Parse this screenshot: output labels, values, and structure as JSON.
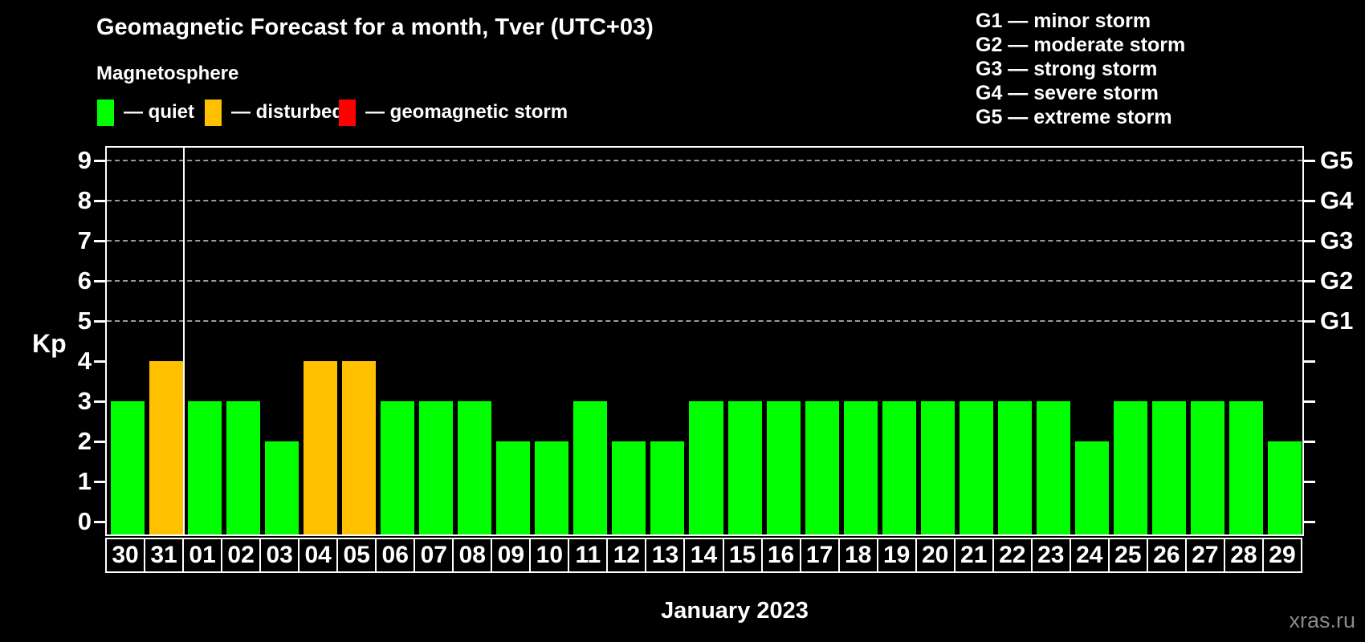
{
  "header": {
    "title": "Geomagnetic Forecast for a month, Tver (UTC+03)",
    "subtitle": "Magnetosphere"
  },
  "legend": {
    "separator": "—",
    "items": [
      {
        "status": "quiet",
        "label": "quiet",
        "color": "#00ff00"
      },
      {
        "status": "disturbed",
        "label": "disturbed",
        "color": "#ffc000"
      },
      {
        "status": "storm",
        "label": "geomagnetic storm",
        "color": "#ff0000"
      }
    ]
  },
  "g_scale_legend": [
    {
      "code": "G1",
      "label": "minor storm"
    },
    {
      "code": "G2",
      "label": "moderate storm"
    },
    {
      "code": "G3",
      "label": "strong storm"
    },
    {
      "code": "G4",
      "label": "severe storm"
    },
    {
      "code": "G5",
      "label": "extreme storm"
    }
  ],
  "chart_data": {
    "type": "bar",
    "title": "Geomagnetic Forecast for a month, Tver (UTC+03)",
    "xlabel": "January 2023",
    "ylabel": "Kp",
    "ylim": [
      0,
      9
    ],
    "grid": "horizontal dashed lines at Kp 5,6,7,8,9",
    "legend_position": "top",
    "categories": [
      "30",
      "31",
      "01",
      "02",
      "03",
      "04",
      "05",
      "06",
      "07",
      "08",
      "09",
      "10",
      "11",
      "12",
      "13",
      "14",
      "15",
      "16",
      "17",
      "18",
      "19",
      "20",
      "21",
      "22",
      "23",
      "24",
      "25",
      "26",
      "27",
      "28",
      "29"
    ],
    "values": [
      3,
      4,
      3,
      3,
      2,
      4,
      4,
      3,
      3,
      3,
      2,
      2,
      3,
      2,
      2,
      3,
      3,
      3,
      3,
      3,
      3,
      3,
      3,
      3,
      3,
      2,
      3,
      3,
      3,
      3,
      2
    ],
    "statuses": [
      "quiet",
      "disturbed",
      "quiet",
      "quiet",
      "quiet",
      "disturbed",
      "disturbed",
      "quiet",
      "quiet",
      "quiet",
      "quiet",
      "quiet",
      "quiet",
      "quiet",
      "quiet",
      "quiet",
      "quiet",
      "quiet",
      "quiet",
      "quiet",
      "quiet",
      "quiet",
      "quiet",
      "quiet",
      "quiet",
      "quiet",
      "quiet",
      "quiet",
      "quiet",
      "quiet",
      "quiet"
    ],
    "bar_colors": {
      "quiet": "#00ff00",
      "disturbed": "#ffc000",
      "storm": "#ff0000"
    },
    "kp_ticks": [
      0,
      1,
      2,
      3,
      4,
      5,
      6,
      7,
      8,
      9
    ],
    "right_axis": [
      {
        "kp": 5,
        "label": "G1"
      },
      {
        "kp": 6,
        "label": "G2"
      },
      {
        "kp": 7,
        "label": "G3"
      },
      {
        "kp": 8,
        "label": "G4"
      },
      {
        "kp": 9,
        "label": "G5"
      }
    ],
    "month_separator_after": "31"
  },
  "footer": {
    "watermark": "xras.ru"
  }
}
